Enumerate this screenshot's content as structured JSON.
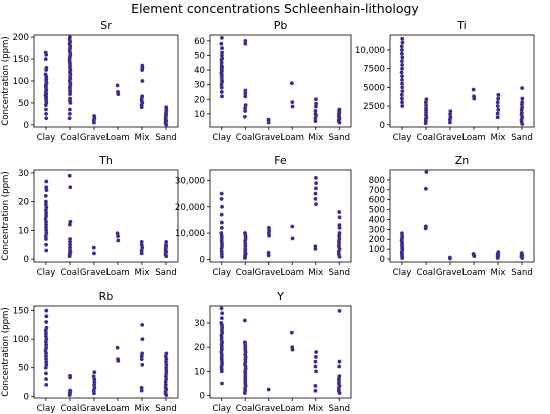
{
  "figure": {
    "title": "Element concentrations Schleenhain-lithology",
    "point_color": "#3a2f8f"
  },
  "chart_data": [
    {
      "type": "scatter",
      "title": "Sr",
      "ylabel": "Concentration (ppm)",
      "categories": [
        "Clay",
        "Coal",
        "Gravel",
        "Loam",
        "Mix",
        "Sand"
      ],
      "ylim": [
        -5,
        205
      ],
      "yticks": [
        0,
        50,
        100,
        150,
        200
      ],
      "ytick_labels": [
        "0",
        "50",
        "100",
        "150",
        "200"
      ],
      "series": [
        {
          "points": {
            "Clay": [
              15,
              25,
              35,
              45,
              50,
              55,
              60,
              62,
              65,
              68,
              70,
              72,
              75,
              80,
              85,
              88,
              90,
              95,
              100,
              105,
              110,
              115,
              125,
              130,
              150,
              160,
              165
            ],
            "Coal": [
              15,
              25,
              35,
              50,
              55,
              60,
              70,
              75,
              80,
              85,
              90,
              95,
              100,
              105,
              110,
              115,
              120,
              125,
              130,
              135,
              140,
              145,
              150,
              155,
              160,
              165,
              170,
              175,
              180,
              185,
              190,
              195,
              200
            ],
            "Gravel": [
              5,
              10,
              15,
              20
            ],
            "Loam": [
              70,
              75,
              90
            ],
            "Mix": [
              40,
              45,
              50,
              55,
              60,
              65,
              100,
              125,
              130,
              135
            ],
            "Sand": [
              0,
              3,
              6,
              9,
              12,
              15,
              18,
              22,
              25,
              30,
              35,
              40
            ]
          }
        }
      ]
    },
    {
      "type": "scatter",
      "title": "Pb",
      "ylabel": "",
      "categories": [
        "Clay",
        "Coal",
        "Gravel",
        "Loam",
        "Mix",
        "Sand"
      ],
      "ylim": [
        1,
        64
      ],
      "yticks": [
        10,
        20,
        30,
        40,
        50,
        60
      ],
      "ytick_labels": [
        "10",
        "20",
        "30",
        "40",
        "50",
        "60"
      ],
      "series": [
        {
          "points": {
            "Clay": [
              22,
              25,
              28,
              30,
              32,
              33,
              35,
              36,
              37,
              38,
              39,
              40,
              41,
              42,
              43,
              45,
              47,
              48,
              50,
              52,
              55,
              58,
              62
            ],
            "Coal": [
              8,
              12,
              14,
              16,
              22,
              24,
              26,
              58,
              60
            ],
            "Gravel": [
              4,
              6
            ],
            "Loam": [
              15,
              18,
              31
            ],
            "Mix": [
              5,
              7,
              9,
              10,
              12,
              15,
              17,
              20
            ],
            "Sand": [
              4,
              5,
              6,
              7,
              8,
              9,
              10,
              11,
              12,
              13
            ]
          }
        }
      ]
    },
    {
      "type": "scatter",
      "title": "Ti",
      "ylabel": "",
      "categories": [
        "Clay",
        "Coal",
        "Gravel",
        "Loam",
        "Mix",
        "Sand"
      ],
      "ylim": [
        -300,
        12000
      ],
      "yticks": [
        0,
        2500,
        5000,
        7500,
        10000
      ],
      "ytick_labels": [
        "0",
        "2500",
        "5000",
        "7500",
        "10,000"
      ],
      "series": [
        {
          "points": {
            "Clay": [
              2500,
              3000,
              3500,
              4000,
              4500,
              5000,
              5500,
              6000,
              6500,
              7000,
              7500,
              8000,
              8500,
              9000,
              9500,
              10000,
              10500,
              11000,
              11500
            ],
            "Coal": [
              200,
              500,
              800,
              1000,
              1300,
              1600,
              1900,
              2200,
              2600,
              3000,
              3400
            ],
            "Gravel": [
              300,
              700,
              1000,
              1400,
              1800
            ],
            "Loam": [
              3500,
              3800,
              4700
            ],
            "Mix": [
              1000,
              1500,
              2000,
              2500,
              3000,
              3500,
              4000
            ],
            "Sand": [
              100,
              400,
              700,
              1000,
              1300,
              1600,
              2000,
              2300,
              2700,
              3000,
              3500,
              4900
            ]
          }
        }
      ]
    },
    {
      "type": "scatter",
      "title": "Th",
      "ylabel": "Concentration (ppm)",
      "categories": [
        "Clay",
        "Coal",
        "Gravel",
        "Loam",
        "Mix",
        "Sand"
      ],
      "ylim": [
        -1,
        31
      ],
      "yticks": [
        0,
        10,
        20,
        30
      ],
      "ytick_labels": [
        "0",
        "10",
        "20",
        "30"
      ],
      "series": [
        {
          "points": {
            "Clay": [
              3,
              5,
              7,
              8,
              9,
              10,
              11,
              12,
              13,
              14,
              15,
              16,
              17,
              18,
              19,
              20,
              22,
              24,
              25,
              27
            ],
            "Coal": [
              1,
              1.5,
              2,
              2.5,
              3,
              4,
              5,
              6,
              7,
              12,
              13,
              25,
              29
            ],
            "Gravel": [
              2,
              4
            ],
            "Loam": [
              6.5,
              8,
              9
            ],
            "Mix": [
              2,
              3,
              4,
              5,
              6
            ],
            "Sand": [
              1,
              1.5,
              2,
              2.5,
              3,
              3.5,
              4,
              4.5,
              5,
              6
            ]
          }
        }
      ]
    },
    {
      "type": "scatter",
      "title": "Fe",
      "ylabel": "",
      "categories": [
        "Clay",
        "Coal",
        "Gravel",
        "Loam",
        "Mix",
        "Sand"
      ],
      "ylim": [
        -1000,
        34000
      ],
      "yticks": [
        0,
        10000,
        20000,
        30000
      ],
      "ytick_labels": [
        "0",
        "10,000",
        "20,000",
        "30,000"
      ],
      "series": [
        {
          "points": {
            "Clay": [
              1000,
              2000,
              3000,
              4000,
              5000,
              6000,
              7000,
              8000,
              9000,
              10000,
              12000,
              14000,
              17000,
              20000,
              23000,
              25000
            ],
            "Coal": [
              500,
              1000,
              1500,
              2000,
              2500,
              3000,
              4000,
              5000,
              6000,
              7000,
              8000,
              9000,
              10000
            ],
            "Gravel": [
              1500,
              2500,
              9000,
              10000,
              11000,
              12000
            ],
            "Loam": [
              8000,
              12500
            ],
            "Mix": [
              4000,
              5000,
              21000,
              23000,
              25000,
              27000,
              29000,
              31000
            ],
            "Sand": [
              1000,
              2000,
              3000,
              4000,
              5000,
              6000,
              7000,
              8000,
              9000,
              10000,
              12000,
              13000,
              16000,
              18000
            ]
          }
        }
      ]
    },
    {
      "type": "scatter",
      "title": "Zn",
      "ylabel": "",
      "categories": [
        "Clay",
        "Coal",
        "Gravel",
        "Loam",
        "Mix",
        "Sand"
      ],
      "ylim": [
        -30,
        900
      ],
      "yticks": [
        0,
        100,
        200,
        300,
        400,
        500,
        600,
        700,
        800
      ],
      "ytick_labels": [
        "0",
        "100",
        "200",
        "300",
        "400",
        "500",
        "600",
        "700",
        "800"
      ],
      "series": [
        {
          "points": {
            "Clay": [
              10,
              30,
              50,
              70,
              90,
              110,
              130,
              150,
              170,
              190,
              210,
              230,
              260
            ],
            "Coal": [
              310,
              330,
              710,
              880
            ],
            "Gravel": [
              5,
              15
            ],
            "Loam": [
              30,
              40,
              50
            ],
            "Mix": [
              10,
              20,
              30,
              40,
              50,
              60,
              70
            ],
            "Sand": [
              10,
              20,
              30,
              40,
              50,
              60
            ]
          }
        }
      ]
    },
    {
      "type": "scatter",
      "title": "Rb",
      "ylabel": "Concentration (ppm)",
      "categories": [
        "Clay",
        "Coal",
        "Gravel",
        "Loam",
        "Mix",
        "Sand"
      ],
      "ylim": [
        -3,
        158
      ],
      "yticks": [
        0,
        50,
        100,
        150
      ],
      "ytick_labels": [
        "0",
        "50",
        "100",
        "150"
      ],
      "series": [
        {
          "points": {
            "Clay": [
              20,
              30,
              40,
              50,
              55,
              60,
              65,
              70,
              75,
              80,
              85,
              90,
              95,
              100,
              105,
              110,
              115,
              120,
              130,
              140,
              150
            ],
            "Coal": [
              2,
              4,
              6,
              8,
              10,
              33,
              36
            ],
            "Gravel": [
              5,
              10,
              15,
              20,
              25,
              30,
              35,
              42
            ],
            "Loam": [
              62,
              65,
              85
            ],
            "Mix": [
              10,
              15,
              55,
              65,
              70,
              75,
              100,
              125
            ],
            "Sand": [
              2,
              5,
              8,
              12,
              15,
              20,
              25,
              30,
              35,
              40,
              45,
              50,
              55,
              60,
              65,
              70,
              75
            ]
          }
        }
      ]
    },
    {
      "type": "scatter",
      "title": "Y",
      "ylabel": "",
      "categories": [
        "Clay",
        "Coal",
        "Gravel",
        "Loam",
        "Mix",
        "Sand"
      ],
      "ylim": [
        -1,
        37
      ],
      "yticks": [
        0,
        10,
        20,
        30
      ],
      "ytick_labels": [
        "0",
        "10",
        "20",
        "30"
      ],
      "series": [
        {
          "points": {
            "Clay": [
              5,
              10,
              11,
              12,
              13,
              14,
              15,
              16,
              17,
              18,
              19,
              20,
              21,
              22,
              23,
              24,
              25,
              26,
              27,
              28,
              29,
              30,
              32,
              34,
              36
            ],
            "Coal": [
              1,
              2,
              3,
              4,
              5,
              6,
              7,
              8,
              9,
              10,
              11,
              12,
              13,
              14,
              15,
              16,
              17,
              18,
              19,
              20,
              21,
              22,
              31
            ],
            "Gravel": [
              2.5
            ],
            "Loam": [
              19,
              20,
              26
            ],
            "Mix": [
              2,
              4,
              10,
              12,
              14,
              16,
              18
            ],
            "Sand": [
              1,
              2,
              3,
              4,
              5,
              6,
              7,
              8,
              12,
              14,
              35
            ]
          }
        }
      ]
    }
  ]
}
